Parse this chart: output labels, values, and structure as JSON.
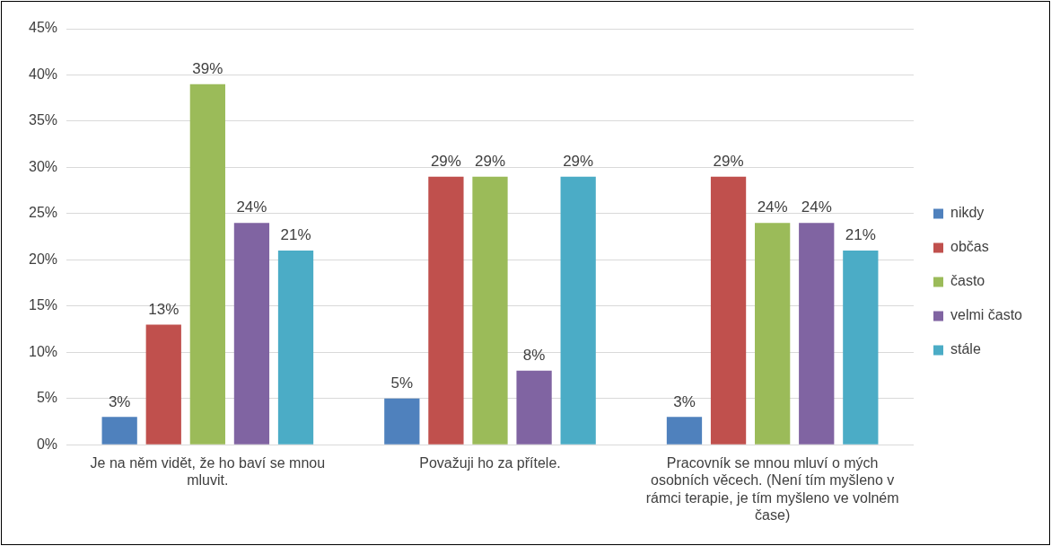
{
  "chart_data": {
    "type": "bar",
    "categories": [
      "Je na něm vidět, že ho baví se mnou mluvit.",
      "Považuji ho za přítele.",
      "Pracovník se mnou mluví o mých osobních věcech. (Není tím myšleno v rámci terapie, je tím myšleno ve volném čase)"
    ],
    "series": [
      {
        "name": "nikdy",
        "color": "#4f81bd",
        "values": [
          3,
          5,
          3
        ],
        "value_labels": [
          "3%",
          "5%",
          "3%"
        ]
      },
      {
        "name": "občas",
        "color": "#c0504d",
        "values": [
          13,
          29,
          29
        ],
        "value_labels": [
          "13%",
          "29%",
          "29%"
        ]
      },
      {
        "name": "často",
        "color": "#9bbb59",
        "values": [
          39,
          29,
          24
        ],
        "value_labels": [
          "39%",
          "29%",
          "24%"
        ]
      },
      {
        "name": "velmi často",
        "color": "#8064a2",
        "values": [
          24,
          8,
          24
        ],
        "value_labels": [
          "24%",
          "8%",
          "24%"
        ]
      },
      {
        "name": "stále",
        "color": "#4bacc6",
        "values": [
          21,
          29,
          21
        ],
        "value_labels": [
          "21%",
          "29%",
          "21%"
        ]
      }
    ],
    "ylim": [
      0,
      45
    ],
    "yticks": [
      {
        "value": 0,
        "label": "0%"
      },
      {
        "value": 5,
        "label": "5%"
      },
      {
        "value": 10,
        "label": "10%"
      },
      {
        "value": 15,
        "label": "15%"
      },
      {
        "value": 20,
        "label": "20%"
      },
      {
        "value": 25,
        "label": "25%"
      },
      {
        "value": 30,
        "label": "30%"
      },
      {
        "value": 35,
        "label": "35%"
      },
      {
        "value": 40,
        "label": "40%"
      },
      {
        "value": 45,
        "label": "45%"
      }
    ],
    "grid": "y",
    "legend": "right"
  }
}
